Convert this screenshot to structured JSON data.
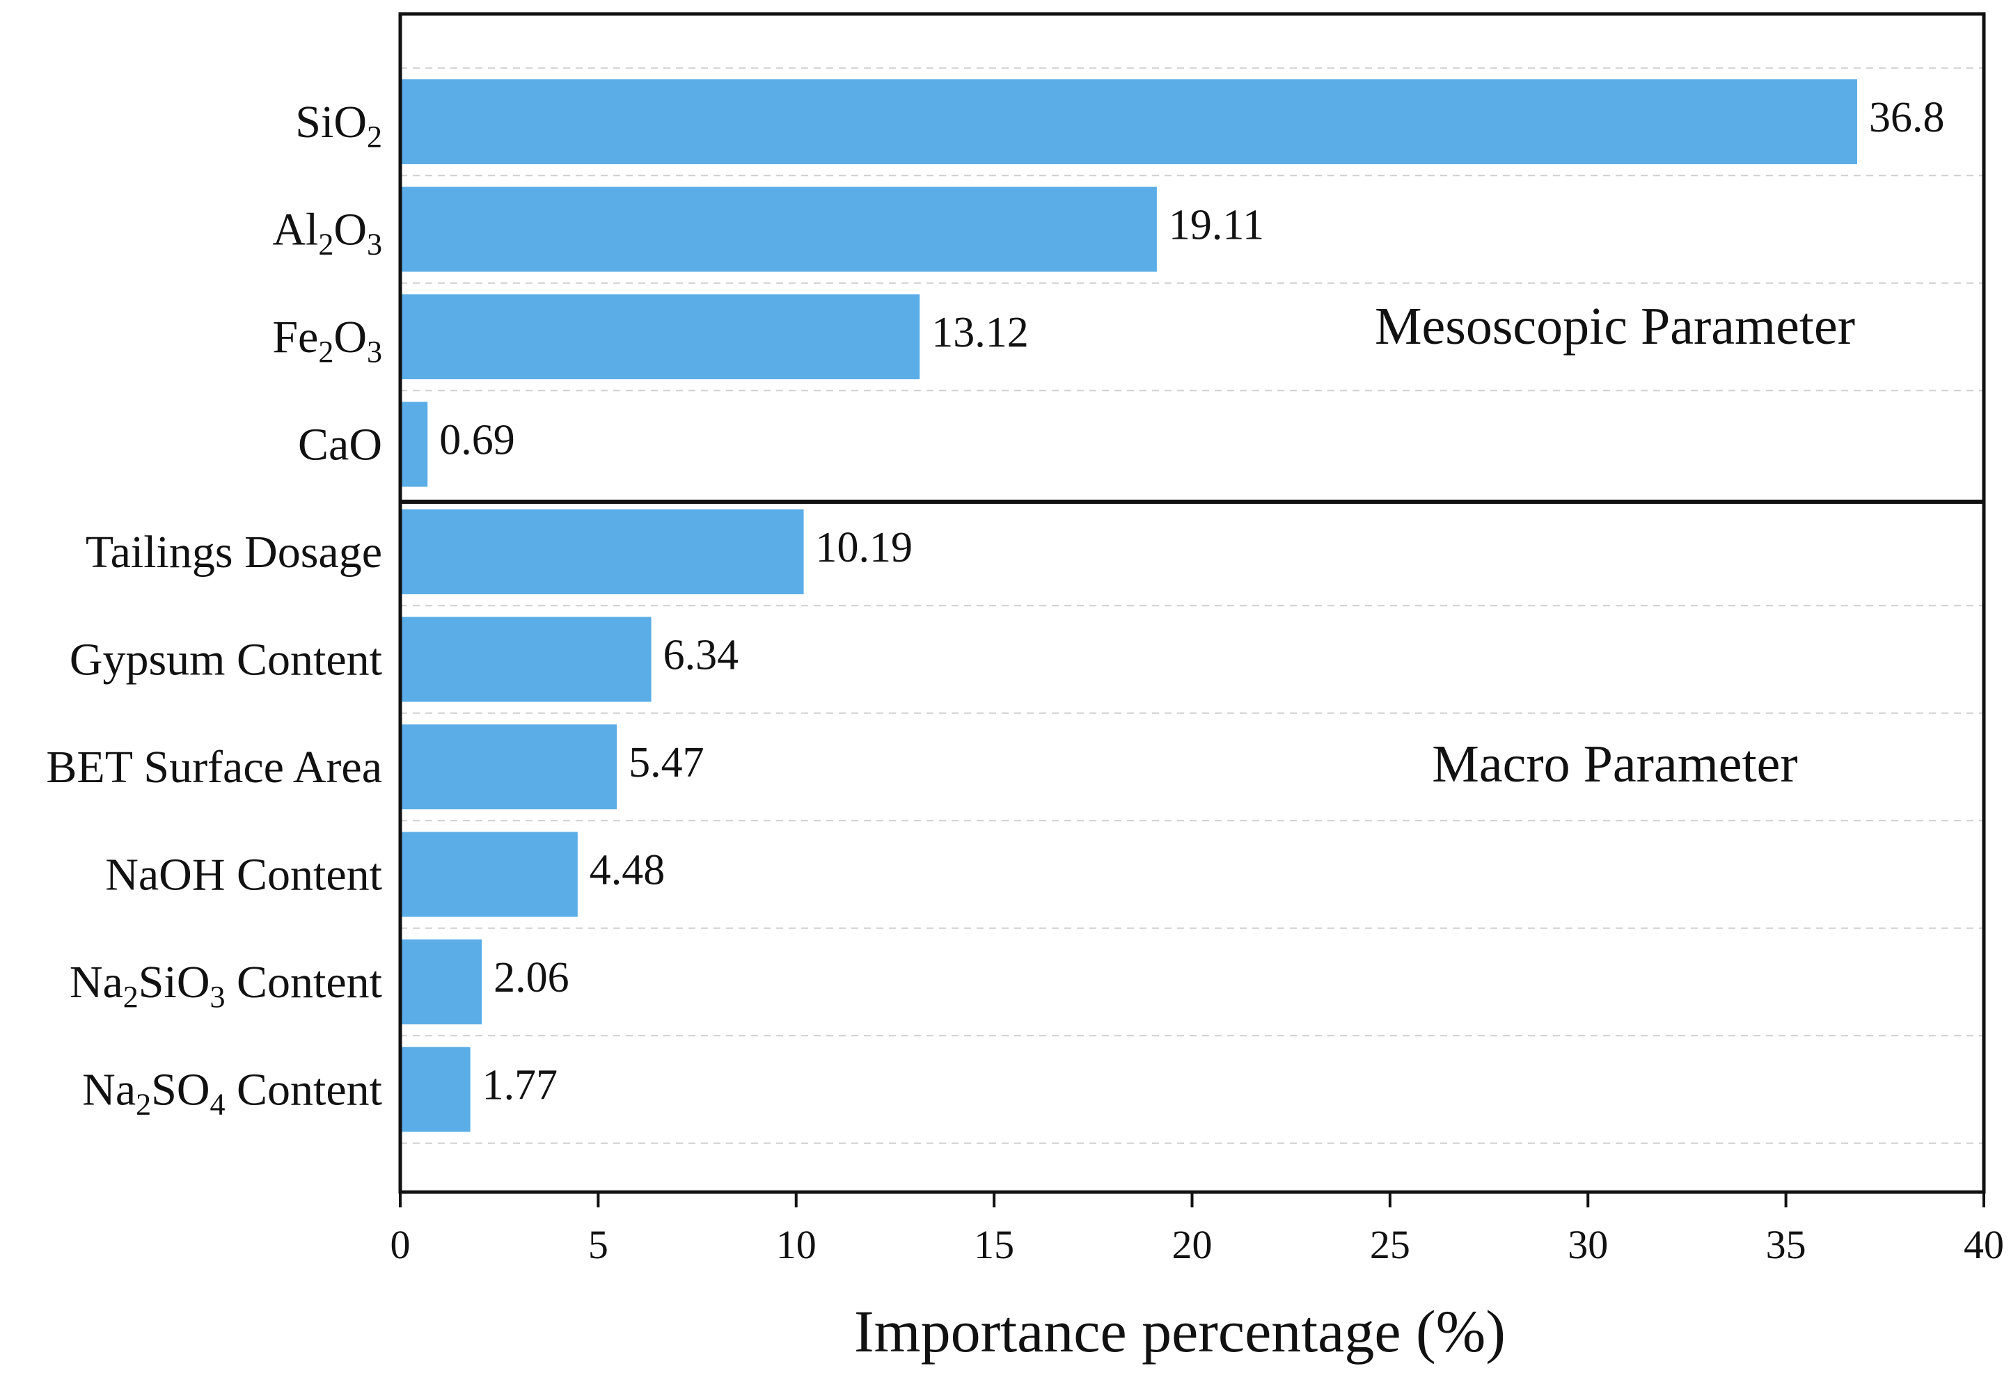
{
  "chart_data": {
    "type": "bar",
    "orientation": "horizontal",
    "categories": [
      "SiO2",
      "Al2O3",
      "Fe2O3",
      "CaO",
      "Tailings Dosage",
      "Gypsum Content",
      "BET Surface Area",
      "NaOH Content",
      "Na2SiO3 Content",
      "Na2SO4 Content"
    ],
    "category_labels": [
      [
        {
          "t": "SiO"
        },
        {
          "t": "2",
          "sub": true
        }
      ],
      [
        {
          "t": "Al"
        },
        {
          "t": "2",
          "sub": true
        },
        {
          "t": "O"
        },
        {
          "t": "3",
          "sub": true
        }
      ],
      [
        {
          "t": "Fe"
        },
        {
          "t": "2",
          "sub": true
        },
        {
          "t": "O"
        },
        {
          "t": "3",
          "sub": true
        }
      ],
      [
        {
          "t": "CaO"
        }
      ],
      [
        {
          "t": "Tailings Dosage"
        }
      ],
      [
        {
          "t": "Gypsum Content"
        }
      ],
      [
        {
          "t": "BET Surface Area"
        }
      ],
      [
        {
          "t": "NaOH Content"
        }
      ],
      [
        {
          "t": "Na"
        },
        {
          "t": "2",
          "sub": true
        },
        {
          "t": "SiO"
        },
        {
          "t": "3",
          "sub": true
        },
        {
          "t": " Content"
        }
      ],
      [
        {
          "t": "Na"
        },
        {
          "t": "2",
          "sub": true
        },
        {
          "t": "SO"
        },
        {
          "t": "4",
          "sub": true
        },
        {
          "t": " Content"
        }
      ]
    ],
    "values": [
      36.8,
      19.11,
      13.12,
      0.69,
      10.19,
      6.34,
      5.47,
      4.48,
      2.06,
      1.77
    ],
    "value_labels": [
      "36.8",
      "19.11",
      "13.12",
      "0.69",
      "10.19",
      "6.34",
      "5.47",
      "4.48",
      "2.06",
      "1.77"
    ],
    "groups": [
      {
        "label": "Mesoscopic Parameter",
        "categories": [
          "SiO2",
          "Al2O3",
          "Fe2O3",
          "CaO"
        ]
      },
      {
        "label": "Macro Parameter",
        "categories": [
          "Tailings Dosage",
          "Gypsum Content",
          "BET Surface Area",
          "NaOH Content",
          "Na2SiO3 Content",
          "Na2SO4 Content"
        ]
      }
    ],
    "xlabel": "Importance percentage (%)",
    "ylabel": "",
    "xlim": [
      0,
      40
    ],
    "xticks": [
      "0",
      "5",
      "10",
      "15",
      "20",
      "25",
      "30",
      "35",
      "40"
    ],
    "grid": "horizontal dashed",
    "bar_color": "#5aade6"
  }
}
